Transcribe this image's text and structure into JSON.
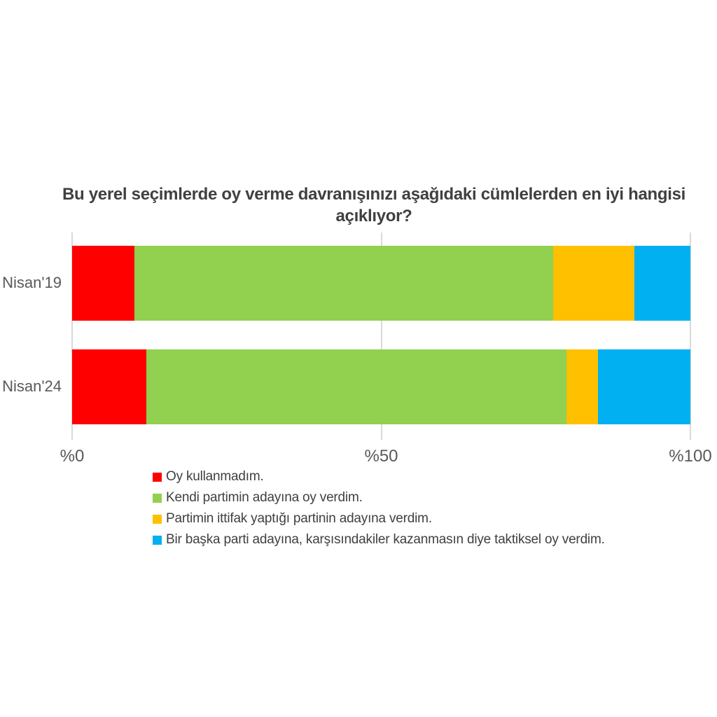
{
  "chart_data": {
    "type": "bar",
    "orientation": "horizontal",
    "stacked": true,
    "title": "Bu yerel seçimlerde oy verme davranışınızı aşağıdaki cümlelerden en iyi hangisi açıklıyor?",
    "categories": [
      "Nisan'19",
      "Nisan'24"
    ],
    "series": [
      {
        "name": "Oy kullanmadım.",
        "color": "#FF0000",
        "values": [
          10,
          12
        ]
      },
      {
        "name": "Kendi partimin adayına oy verdim.",
        "color": "#92D050",
        "values": [
          67,
          68
        ]
      },
      {
        "name": "Partimin ittifak yaptığı partinin adayına verdim.",
        "color": "#FFC000",
        "values": [
          13,
          5
        ]
      },
      {
        "name": "Bir başka parti adayına, karşısındakiler kazanmasın diye taktiksel oy verdim.",
        "color": "#00B0F0",
        "values": [
          9,
          15
        ]
      }
    ],
    "x_axis": {
      "min": 0,
      "max": 100,
      "ticks": [
        "%0",
        "%50",
        "%100"
      ],
      "tick_positions": [
        0,
        50,
        100
      ]
    },
    "grid": "vertical",
    "legend_position": "bottom-left",
    "colors": {
      "background": "#FFFFFF",
      "grid": "#D9D9D9",
      "title_text": "#404040",
      "axis_text": "#595959",
      "legend_text": "#404040"
    }
  }
}
